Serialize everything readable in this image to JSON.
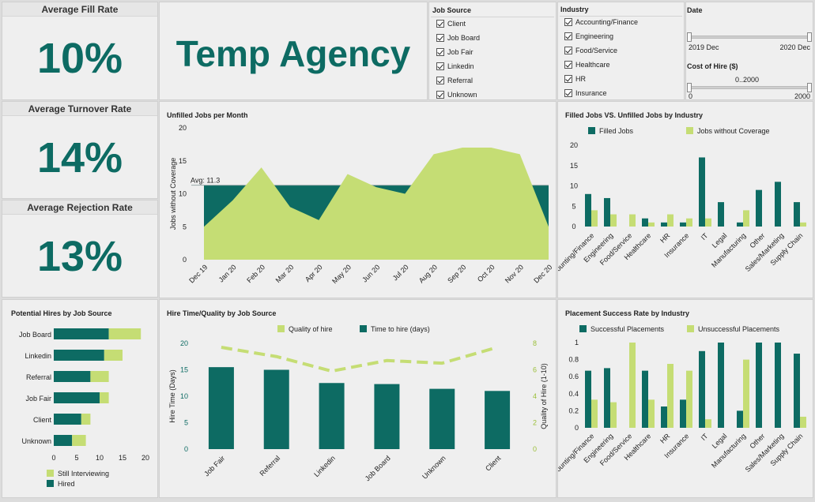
{
  "colors": {
    "teal": "#0d6b63",
    "lime": "#c5dd74",
    "text": "#222222"
  },
  "kpis": [
    {
      "title": "Average Fill Rate",
      "value": "10%"
    },
    {
      "title": "Average Turnover Rate",
      "value": "14%"
    },
    {
      "title": "Average Rejection Rate",
      "value": "13%"
    }
  ],
  "brand": "Temp Agency",
  "filters": {
    "job_source": {
      "title": "Job Source",
      "items": [
        "Client",
        "Job Board",
        "Job Fair",
        "Linkedin",
        "Referral",
        "Unknown"
      ]
    },
    "industry": {
      "title": "Industry",
      "items": [
        "Accounting/Finance",
        "Engineering",
        "Food/Service",
        "Healthcare",
        "HR",
        "Insurance"
      ]
    },
    "date": {
      "title": "Date",
      "min_label": "2019 Dec",
      "max_label": "2020 Dec"
    },
    "cost": {
      "title": "Cost of Hire ($)",
      "range_label": "0..2000",
      "min_label": "0",
      "max_label": "2000"
    }
  },
  "chart_data": [
    {
      "id": "unfilled",
      "type": "area",
      "title": "Unfilled Jobs per Month",
      "ylabel": "Jobs without Coverage",
      "ylim": [
        0,
        20
      ],
      "yticks": [
        0,
        5,
        10,
        15,
        20
      ],
      "categories": [
        "Dec 19",
        "Jan 20",
        "Feb 20",
        "Mar 20",
        "Apr 20",
        "May 20",
        "Jun 20",
        "Jul 20",
        "Aug 20",
        "Sep 20",
        "Oct 20",
        "Nov 20",
        "Dec 20"
      ],
      "values": [
        5,
        9,
        14,
        8,
        6,
        13,
        11,
        10,
        16,
        17,
        17,
        16,
        5
      ],
      "avg": 11.3,
      "avg_label": "Avg: 11.3"
    },
    {
      "id": "filled_vs_unfilled",
      "type": "bar",
      "title": "Filled Jobs VS. Unfilled Jobs by Industry",
      "ylim": [
        0,
        20
      ],
      "yticks": [
        0,
        5,
        10,
        15,
        20
      ],
      "categories": [
        "Accounting/Finance",
        "Engineering",
        "Food/Service",
        "Healthcare",
        "HR",
        "Insurance",
        "IT",
        "Legal",
        "Manufacturing",
        "Other",
        "Sales/Marketing",
        "Supply Chain"
      ],
      "series": [
        {
          "name": "Filled Jobs",
          "values": [
            8,
            7,
            0,
            2,
            1,
            1,
            17,
            6,
            1,
            9,
            11,
            6
          ]
        },
        {
          "name": "Jobs without Coverage",
          "values": [
            4,
            3,
            3,
            1,
            3,
            2,
            2,
            0,
            4,
            0,
            0,
            1
          ]
        }
      ]
    },
    {
      "id": "potential_hires",
      "type": "bar",
      "orientation": "horizontal",
      "stacked": true,
      "title": "Potential Hires by Job Source",
      "xlim": [
        0,
        20
      ],
      "xticks": [
        0,
        5,
        10,
        15,
        20
      ],
      "categories": [
        "Job Board",
        "Linkedin",
        "Referral",
        "Job Fair",
        "Client",
        "Unknown"
      ],
      "series": [
        {
          "name": "Hired",
          "values": [
            12,
            11,
            8,
            10,
            6,
            4
          ]
        },
        {
          "name": "Still Interviewing",
          "values": [
            7,
            4,
            4,
            2,
            2,
            3
          ]
        }
      ],
      "legend_order": [
        "Still Interviewing",
        "Hired"
      ]
    },
    {
      "id": "hire_time_quality",
      "type": "bar",
      "title": "Hire Time/Quality by Job Source",
      "ylabel": "Hire Time (Days)",
      "y2label": "Quality of Hire (1-10)",
      "ylim": [
        0,
        20
      ],
      "yticks": [
        0,
        5,
        10,
        15,
        20
      ],
      "y2lim": [
        0,
        8
      ],
      "y2ticks": [
        0,
        2,
        4,
        6,
        8
      ],
      "categories": [
        "Job Fair",
        "Referral",
        "Linkedin",
        "Job Board",
        "Unknown",
        "Client"
      ],
      "series": [
        {
          "name": "Time to hire (days)",
          "type": "bar",
          "values": [
            15.5,
            15,
            12.5,
            12.3,
            11.4,
            11
          ]
        },
        {
          "name": "Quality of hire",
          "type": "line",
          "axis": "y2",
          "values": [
            7.7,
            7.0,
            5.9,
            6.7,
            6.5,
            7.7
          ]
        }
      ],
      "legend_order": [
        "Quality of hire",
        "Time to hire (days)"
      ]
    },
    {
      "id": "placement_success",
      "type": "bar",
      "title": "Placement Success Rate by Industry",
      "ylim": [
        0,
        1
      ],
      "yticks": [
        "0",
        "0.2",
        "0.4",
        "0.6",
        "0.8",
        "1"
      ],
      "categories": [
        "Accounting/Finance",
        "Engineering",
        "Food/Service",
        "Healthcare",
        "HR",
        "Insurance",
        "IT",
        "Legal",
        "Manufacturing",
        "Other",
        "Sales/Marketing",
        "Supply Chain"
      ],
      "series": [
        {
          "name": "Successful Placements",
          "values": [
            0.67,
            0.7,
            0,
            0.67,
            0.25,
            0.33,
            0.9,
            1,
            0.2,
            1,
            1,
            0.87
          ]
        },
        {
          "name": "Unsuccessful Placements",
          "values": [
            0.33,
            0.3,
            1,
            0.33,
            0.75,
            0.67,
            0.1,
            0,
            0.8,
            0,
            0,
            0.13
          ]
        }
      ]
    }
  ]
}
